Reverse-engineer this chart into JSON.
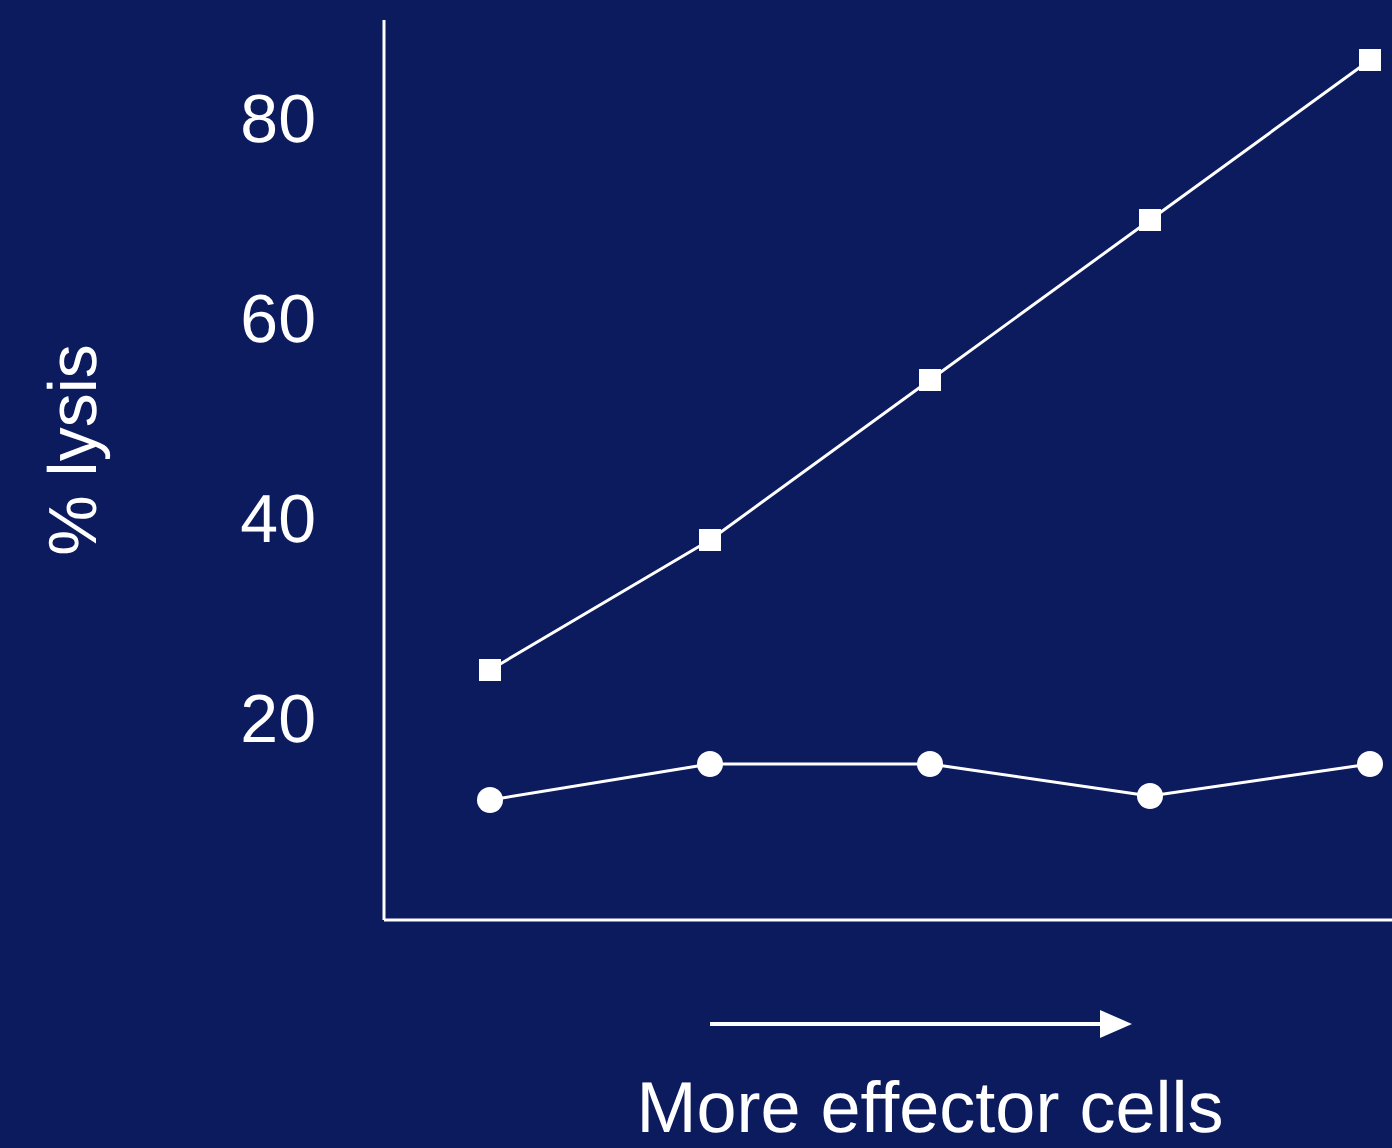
{
  "chart_data": {
    "type": "line",
    "xlabel": "More effector cells",
    "ylabel": "% lysis",
    "categories": [
      null,
      null,
      null,
      null,
      null
    ],
    "series": [
      {
        "color": "#ffffff",
        "marker": "square",
        "values": [
          25,
          38,
          54,
          70,
          86
        ]
      },
      {
        "color": "#ffffff",
        "marker": "circle",
        "values": [
          12,
          15.6,
          15.6,
          12.4,
          15.6
        ]
      }
    ],
    "ylim": [
      0,
      90
    ],
    "yticks": [
      20,
      40,
      60,
      80
    ],
    "grid": false
  }
}
